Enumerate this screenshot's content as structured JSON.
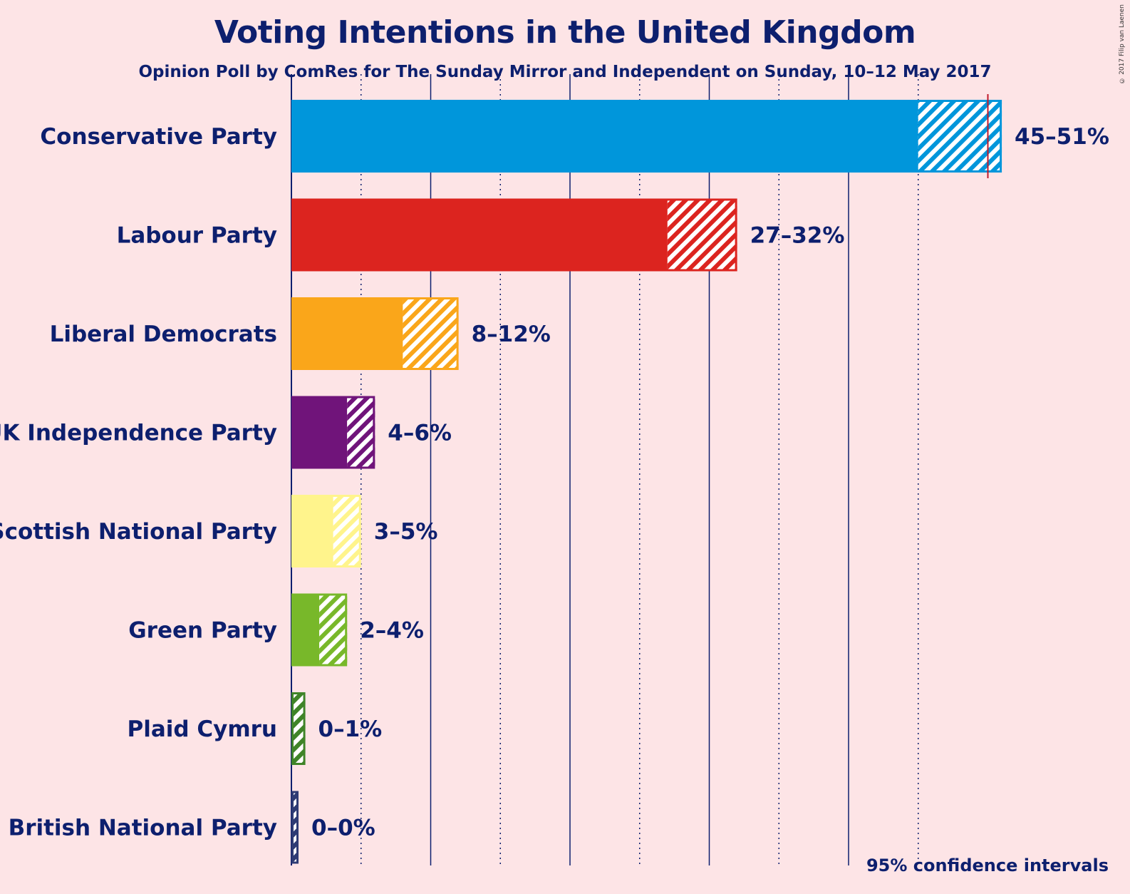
{
  "title": "Voting Intentions in the United Kingdom",
  "subtitle": "Opinion Poll by ComRes for The Sunday Mirror and Independent on Sunday, 10–12 May 2017",
  "copyright": "© 2017 Filip van Laenen",
  "note": "95% confidence intervals",
  "chart_data": {
    "type": "bar",
    "orientation": "horizontal",
    "categories": [
      "Conservative Party",
      "Labour Party",
      "Liberal Democrats",
      "UK Independence Party",
      "Scottish National Party",
      "Green Party",
      "Plaid Cymru",
      "British National Party"
    ],
    "ranges": [
      {
        "low": 45,
        "high": 51,
        "label": "45–51%",
        "color": "#0096db"
      },
      {
        "low": 27,
        "high": 32,
        "label": "27–32%",
        "color": "#dc241f"
      },
      {
        "low": 8,
        "high": 12,
        "label": "8–12%",
        "color": "#faa61a"
      },
      {
        "low": 4,
        "high": 6,
        "label": "4–6%",
        "color": "#70147a"
      },
      {
        "low": 3,
        "high": 5,
        "label": "3–5%",
        "color": "#fff48c"
      },
      {
        "low": 2,
        "high": 4,
        "label": "2–4%",
        "color": "#78b82a"
      },
      {
        "low": 0,
        "high": 1,
        "label": "0–1%",
        "color": "#3f8428"
      },
      {
        "low": 0,
        "high": 0,
        "label": "0–0%",
        "color": "#2e3b74"
      }
    ],
    "previous_result": {
      "party": "Conservative Party",
      "value": 50
    },
    "xlim": [
      0,
      51
    ],
    "gridlines_solid": [
      0,
      10,
      20,
      30,
      40
    ],
    "gridlines_dotted": [
      5,
      15,
      25,
      35,
      45
    ],
    "grid": true
  }
}
